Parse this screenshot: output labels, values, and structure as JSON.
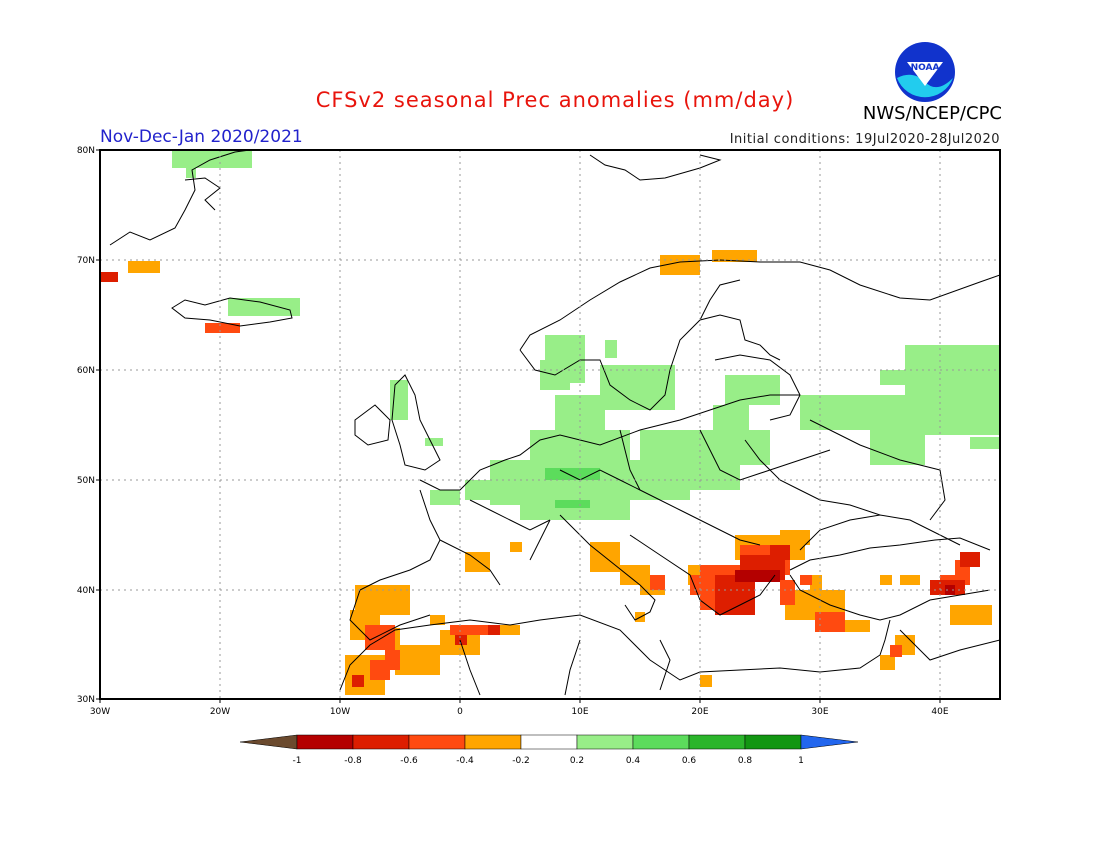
{
  "title": "CFSv2 seasonal Prec anomalies (mm/day)",
  "agency": "NWS/NCEP/CPC",
  "logo_text": "NOAA",
  "season": "Nov-Dec-Jan 2020/2021",
  "initial_conditions": "Initial conditions: 19Jul2020-28Jul2020",
  "map": {
    "lon_range": [
      -30,
      45
    ],
    "lat_range": [
      30,
      80
    ],
    "lat_ticks": [
      "80N",
      "70N",
      "60N",
      "50N",
      "40N",
      "30N"
    ],
    "lon_ticks": [
      "30W",
      "20W",
      "10W",
      "0",
      "10E",
      "20E",
      "30E",
      "40E"
    ],
    "grid": "dotted"
  },
  "legend": {
    "ticks": [
      "-1",
      "-0.8",
      "-0.6",
      "-0.4",
      "-0.2",
      "0.2",
      "0.4",
      "0.6",
      "0.8",
      "1"
    ],
    "colors": [
      "#6b4a2e",
      "#b40000",
      "#dd1e00",
      "#ff4a10",
      "#ffa500",
      "#ffffff",
      "#98ee88",
      "#5cdc5c",
      "#2bb52b",
      "#129612",
      "#2266ee"
    ]
  },
  "colors": {
    "light_green": "#98ee88",
    "mid_green": "#5cdc5c",
    "orange": "#ffa500",
    "red_orange": "#ff4a10",
    "red": "#dd1e00",
    "dark_red": "#b40000"
  }
}
